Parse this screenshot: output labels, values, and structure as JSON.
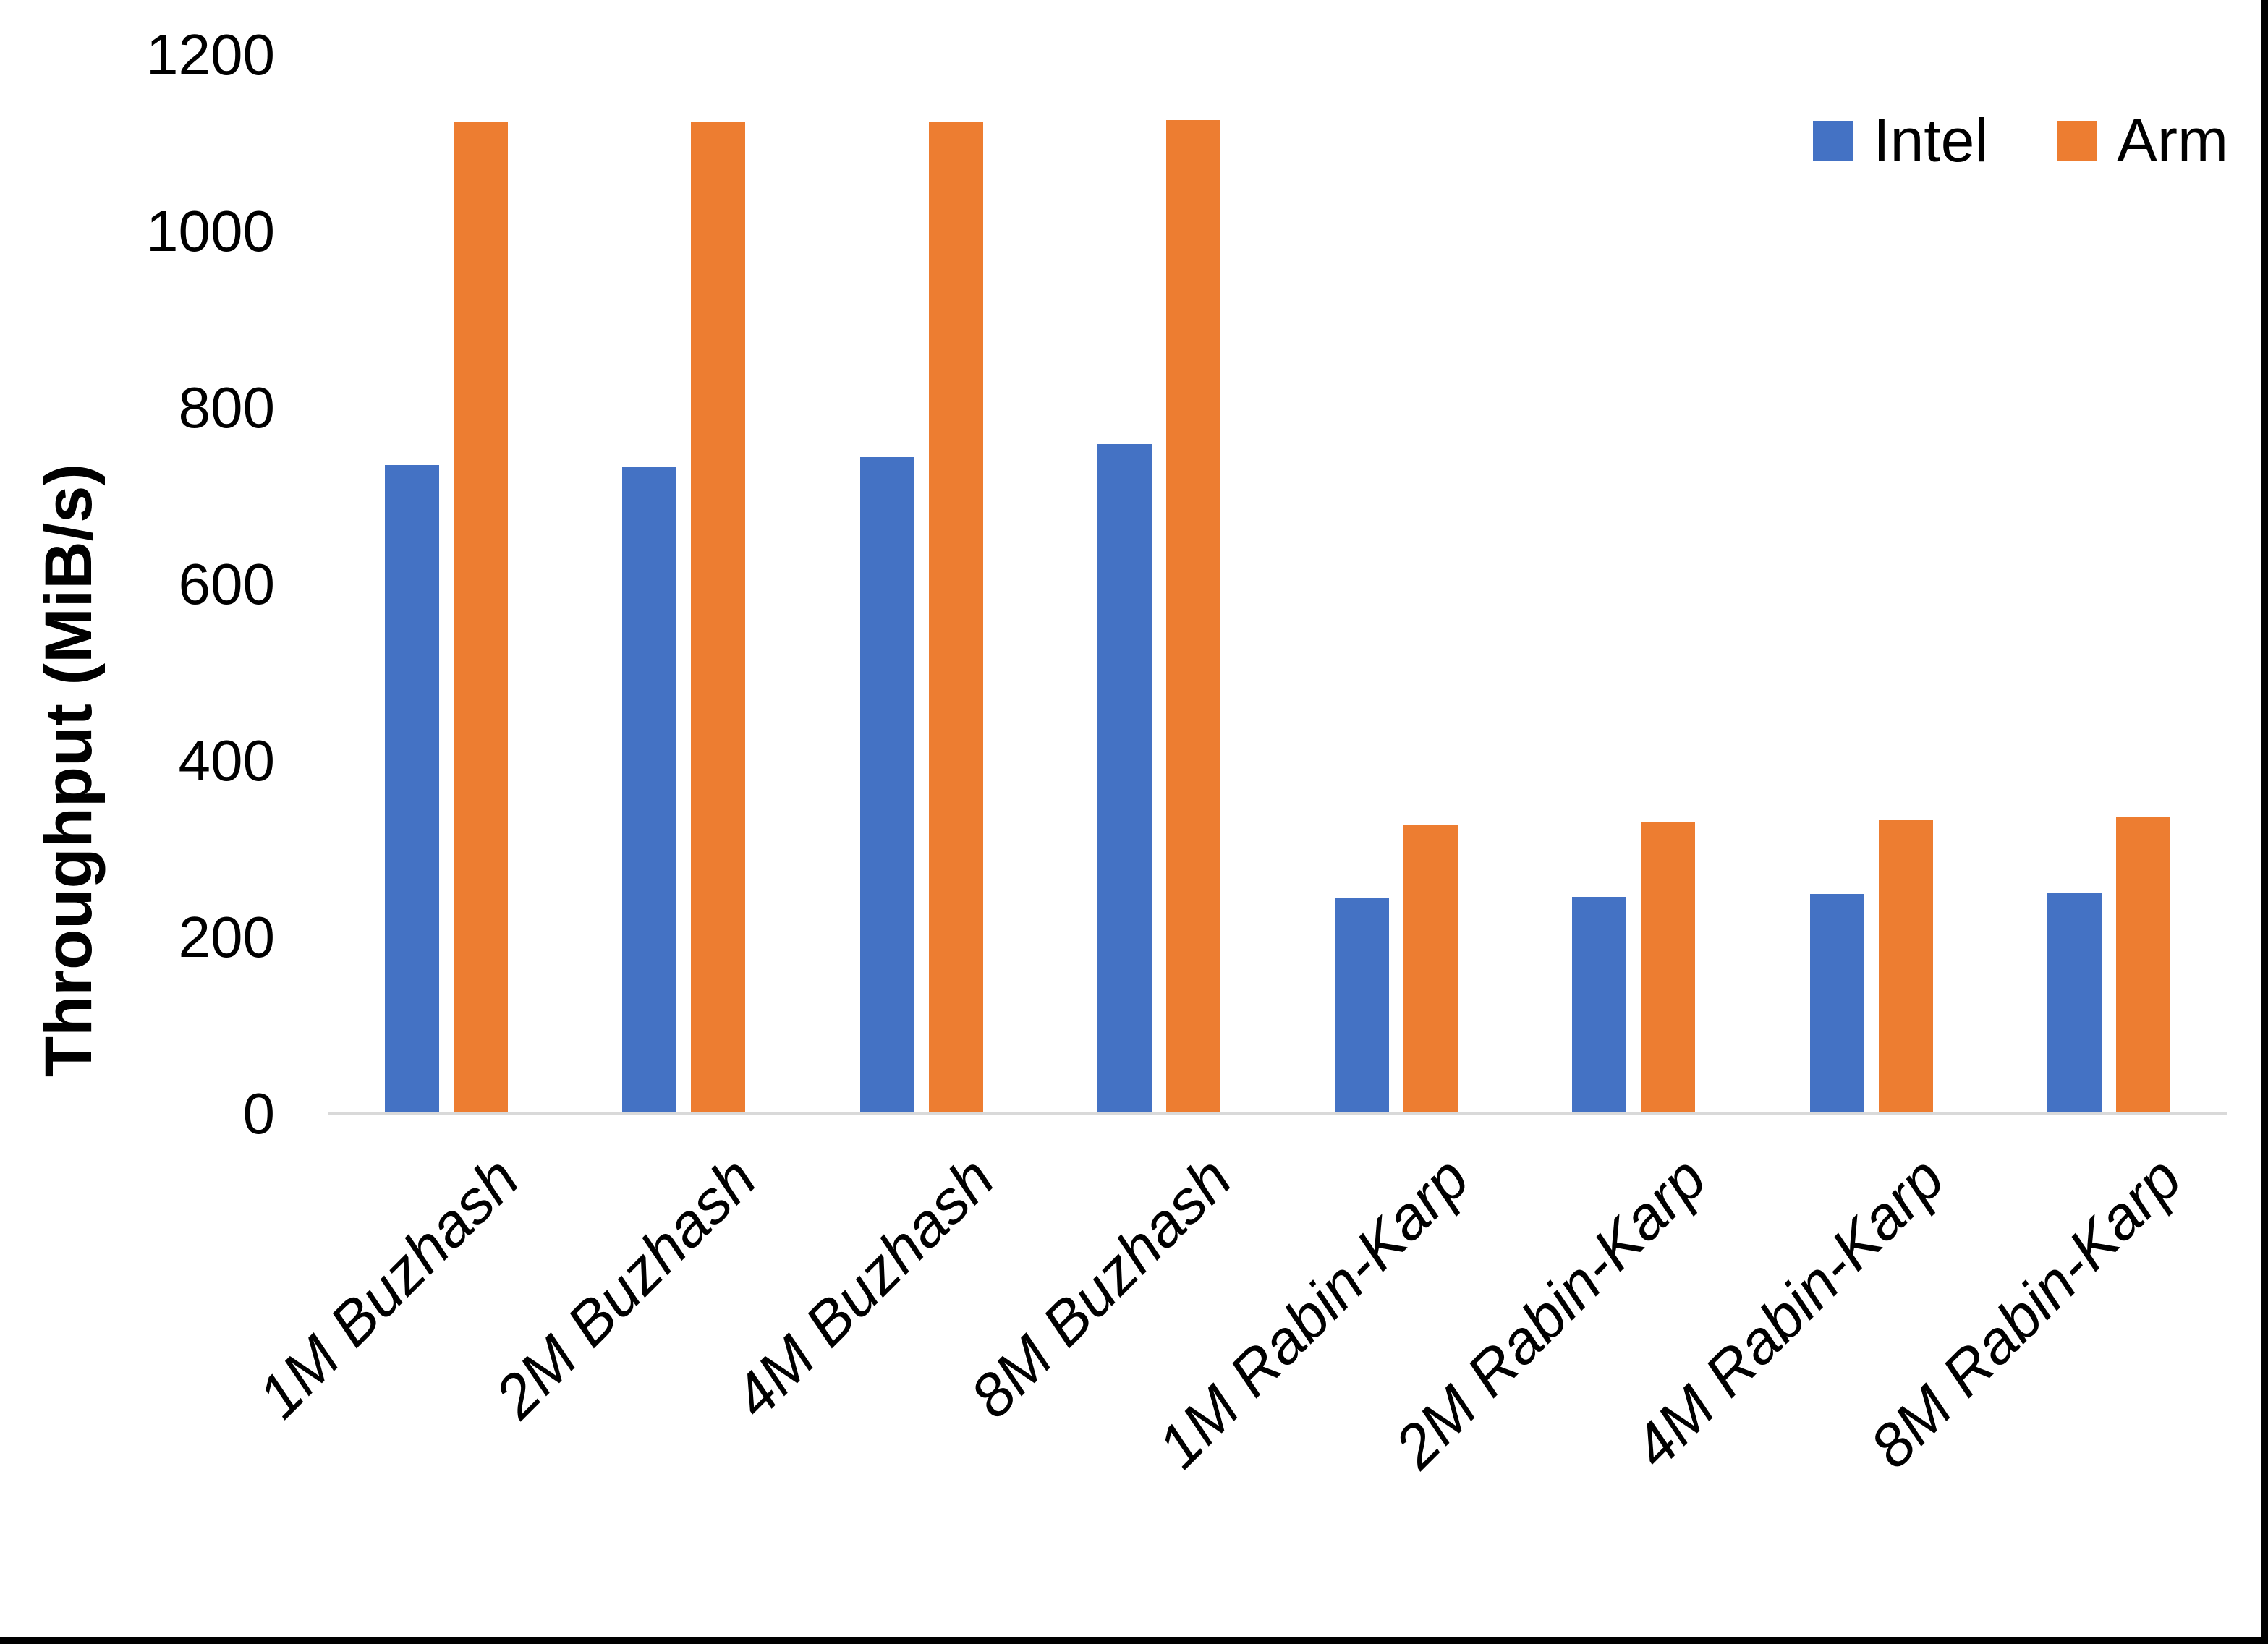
{
  "page": {
    "background_color": "#FFFFFF",
    "frame_border_color": "#000000",
    "axis_line_color": "#D9D9D9",
    "text_color": "#000000"
  },
  "chart_data": {
    "type": "bar",
    "title": "",
    "xlabel": "",
    "ylabel": "Throughput (MiB/s)",
    "ylim": [
      0,
      1200
    ],
    "yticks": [
      0,
      200,
      400,
      600,
      800,
      1000,
      1200
    ],
    "grid": false,
    "legend_position": "top-right",
    "categories": [
      "1M Buzhash",
      "2M Buzhash",
      "4M Buzhash",
      "8M Buzhash",
      "1M Rabin-Karp",
      "2M Rabin-Karp",
      "4M Rabin-Karp",
      "8M Rabin-Karp"
    ],
    "series": [
      {
        "name": "Intel",
        "color": "#4472C4",
        "values": [
          735,
          734,
          744,
          759,
          245,
          246,
          249,
          251
        ]
      },
      {
        "name": "Arm",
        "color": "#ED7D31",
        "values": [
          1125,
          1125,
          1125,
          1126,
          327,
          330,
          333,
          336
        ]
      }
    ]
  }
}
